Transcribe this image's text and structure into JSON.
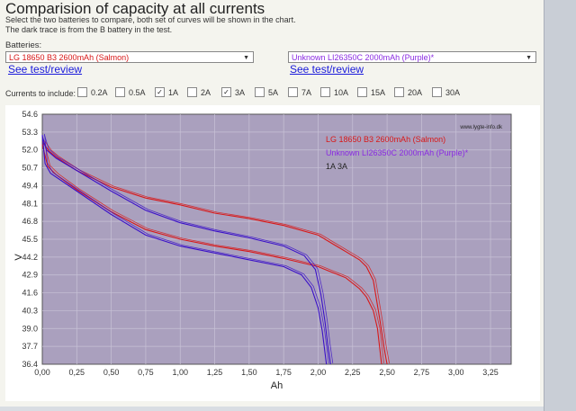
{
  "header": {
    "title": "Comparision of capacity at all currents",
    "desc1": "Select the two batteries to compare, both set of curves will be shown in the chart.",
    "desc2": "The dark trace is from the B battery in the test."
  },
  "batteries": {
    "label": "Batteries:",
    "a": {
      "value": "LG 18650 B3 2600mAh (Salmon)",
      "link": "See test/review"
    },
    "b": {
      "value": "Unknown LI26350C 2000mAh (Purple)*",
      "link": "See test/review"
    }
  },
  "currents": {
    "label": "Currents to include:",
    "options": [
      {
        "label": "0.2A",
        "checked": false
      },
      {
        "label": "0.5A",
        "checked": false
      },
      {
        "label": "1A",
        "checked": true
      },
      {
        "label": "2A",
        "checked": false
      },
      {
        "label": "3A",
        "checked": true
      },
      {
        "label": "5A",
        "checked": false
      },
      {
        "label": "7A",
        "checked": false
      },
      {
        "label": "10A",
        "checked": false
      },
      {
        "label": "15A",
        "checked": false
      },
      {
        "label": "20A",
        "checked": false
      },
      {
        "label": "30A",
        "checked": false
      }
    ]
  },
  "chart_data": {
    "type": "line",
    "xlabel": "Ah",
    "ylabel": "V",
    "xlim": [
      0,
      3.4
    ],
    "ylim": [
      36.4,
      54.6
    ],
    "xticks": [
      "0,00",
      "0,25",
      "0,50",
      "0,75",
      "1,00",
      "1,25",
      "1,50",
      "1,75",
      "2,00",
      "2,25",
      "2,50",
      "2,75",
      "3,00",
      "3,25"
    ],
    "yticks": [
      "54.6",
      "53.3",
      "52.0",
      "50.7",
      "49.4",
      "48.1",
      "46.8",
      "45.5",
      "44.2",
      "42.9",
      "41.6",
      "40.3",
      "39.0",
      "37.7",
      "36.4"
    ],
    "watermark": "www.lygte-info.dk",
    "legend": {
      "a": "LG 18650 B3 2600mAh (Salmon)",
      "b": "Unknown LI26350C 2000mAh (Purple)*",
      "currents": "1A 3A"
    },
    "colors": {
      "a": "#d81818",
      "b": "#3a10c8",
      "plot_bg": "#aaa0be",
      "grid": "#c8c2d6"
    },
    "series": [
      {
        "name": "LG 18650 B3 2600mAh (Salmon) 1A",
        "color": "#d81818",
        "x": [
          0,
          0.05,
          0.1,
          0.25,
          0.5,
          0.75,
          1.0,
          1.25,
          1.5,
          1.75,
          2.0,
          2.1,
          2.2,
          2.3,
          2.35,
          2.4,
          2.45,
          2.48,
          2.5
        ],
        "y": [
          52.6,
          51.9,
          51.5,
          50.5,
          49.3,
          48.5,
          48.0,
          47.4,
          47.0,
          46.5,
          45.8,
          45.2,
          44.6,
          44.0,
          43.5,
          42.5,
          39.5,
          37.5,
          36.4
        ]
      },
      {
        "name": "LG 18650 B3 2600mAh (Salmon) 3A",
        "color": "#d81818",
        "x": [
          0,
          0.04,
          0.1,
          0.25,
          0.5,
          0.75,
          1.0,
          1.25,
          1.5,
          1.75,
          2.0,
          2.1,
          2.2,
          2.3,
          2.35,
          2.4,
          2.43,
          2.46
        ],
        "y": [
          52.4,
          50.8,
          50.2,
          49.1,
          47.5,
          46.2,
          45.5,
          45.0,
          44.6,
          44.1,
          43.5,
          43.1,
          42.7,
          41.9,
          41.3,
          40.3,
          39.0,
          36.4
        ]
      },
      {
        "name": "Unknown LI26350C 2000mAh (Purple) 1A",
        "color": "#3a10c8",
        "x": [
          0,
          0.03,
          0.1,
          0.25,
          0.5,
          0.75,
          1.0,
          1.25,
          1.5,
          1.75,
          1.9,
          1.98,
          2.02,
          2.05,
          2.07,
          2.09
        ],
        "y": [
          53.0,
          52.0,
          51.4,
          50.5,
          49.0,
          47.6,
          46.7,
          46.1,
          45.6,
          45.0,
          44.3,
          43.3,
          41.5,
          39.5,
          37.8,
          36.4
        ]
      },
      {
        "name": "Unknown LI26350C 2000mAh (Purple) 3A",
        "color": "#3a10c8",
        "x": [
          0,
          0.02,
          0.06,
          0.25,
          0.5,
          0.75,
          1.0,
          1.25,
          1.5,
          1.75,
          1.88,
          1.95,
          2.0,
          2.03,
          2.06
        ],
        "y": [
          53.1,
          51.0,
          50.3,
          49.0,
          47.3,
          45.8,
          45.0,
          44.5,
          44.0,
          43.5,
          42.9,
          42.0,
          40.5,
          38.8,
          36.4
        ]
      }
    ]
  }
}
